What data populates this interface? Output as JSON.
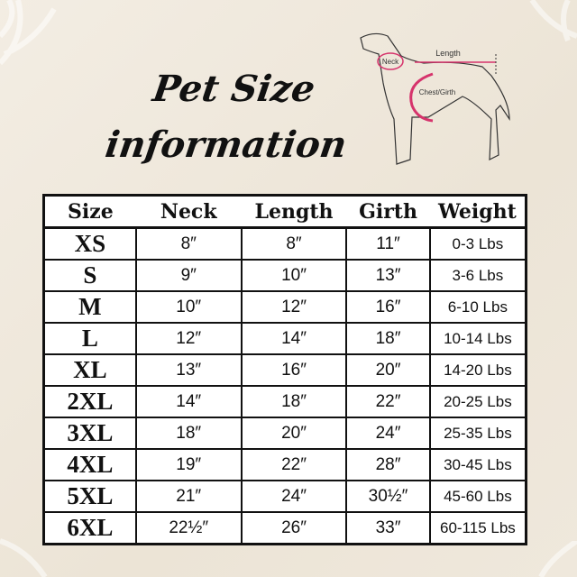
{
  "title": {
    "line1": "Pet Size",
    "line2": "information"
  },
  "diagram": {
    "neck": "Neck",
    "length": "Length",
    "girth": "Chest/Girth"
  },
  "colors": {
    "accent": "#d6336c",
    "background": "#efe8dc"
  },
  "table": {
    "headers": [
      "Size",
      "Neck",
      "Length",
      "Girth",
      "Weight"
    ],
    "rows": [
      [
        "XS",
        "8″",
        "8″",
        "11″",
        "0-3 Lbs"
      ],
      [
        "S",
        "9″",
        "10″",
        "13″",
        "3-6 Lbs"
      ],
      [
        "M",
        "10″",
        "12″",
        "16″",
        "6-10 Lbs"
      ],
      [
        "L",
        "12″",
        "14″",
        "18″",
        "10-14 Lbs"
      ],
      [
        "XL",
        "13″",
        "16″",
        "20″",
        "14-20 Lbs"
      ],
      [
        "2XL",
        "14″",
        "18″",
        "22″",
        "20-25 Lbs"
      ],
      [
        "3XL",
        "18″",
        "20″",
        "24″",
        "25-35 Lbs"
      ],
      [
        "4XL",
        "19″",
        "22″",
        "28″",
        "30-45 Lbs"
      ],
      [
        "5XL",
        "21″",
        "24″",
        "30½″",
        "45-60 Lbs"
      ],
      [
        "6XL",
        "22½″",
        "26″",
        "33″",
        "60-115 Lbs"
      ]
    ]
  }
}
